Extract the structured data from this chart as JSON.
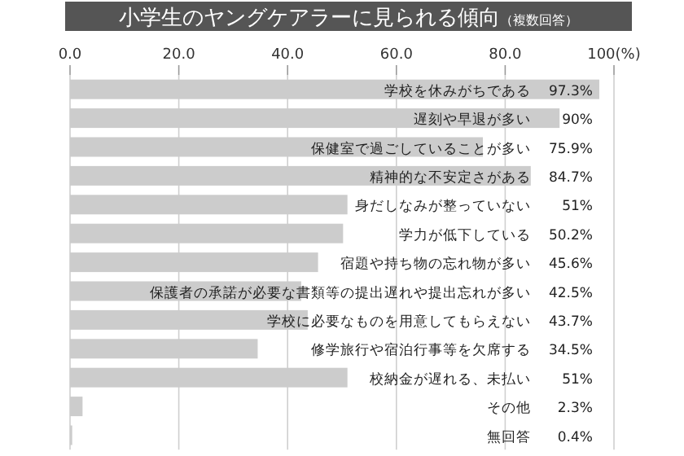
{
  "chart_data": {
    "type": "bar",
    "orientation": "horizontal",
    "title": "小学生のヤングケアラーに見られる傾向",
    "subtitle": "（複数回答）",
    "categories": [
      "学校を休みがちである",
      "遅刻や早退が多い",
      "保健室で過ごしていることが多い",
      "精神的な不安定さがある",
      "身だしなみが整っていない",
      "学力が低下している",
      "宿題や持ち物の忘れ物が多い",
      "保護者の承諾が必要な書類等の提出遅れや提出忘れが多い",
      "学校に必要なものを用意してもらえない",
      "修学旅行や宿泊行事等を欠席する",
      "校納金が遅れる、未払い",
      "その他",
      "無回答"
    ],
    "values": [
      97.3,
      90,
      75.9,
      84.7,
      51,
      50.2,
      45.6,
      42.5,
      43.7,
      34.5,
      51,
      2.3,
      0.4
    ],
    "value_labels": [
      "97.3%",
      "90%",
      "75.9%",
      "84.7%",
      "51%",
      "50.2%",
      "45.6%",
      "42.5%",
      "43.7%",
      "34.5%",
      "51%",
      "2.3%",
      "0.4%"
    ],
    "color": "#cccccc",
    "xlim": [
      0,
      100
    ],
    "xticks": [
      {
        "value": 0,
        "label": "0.0"
      },
      {
        "value": 20,
        "label": "20.0"
      },
      {
        "value": 40,
        "label": "40.0"
      },
      {
        "value": 60,
        "label": "60.0"
      },
      {
        "value": 80,
        "label": "80.0"
      },
      {
        "value": 100,
        "label": "100(%)"
      }
    ],
    "grid": "x"
  }
}
